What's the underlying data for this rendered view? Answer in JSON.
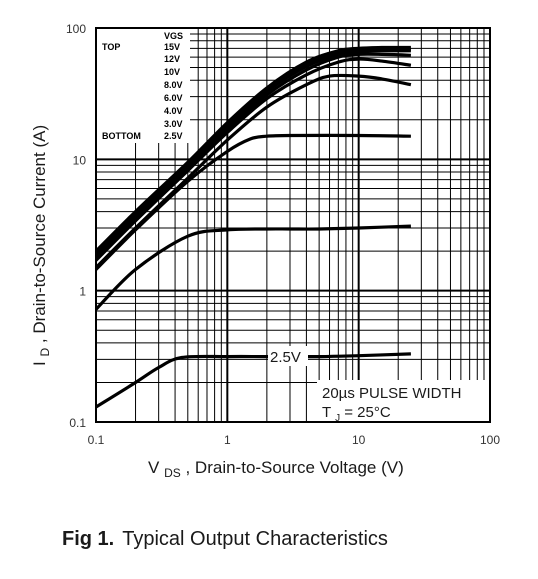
{
  "chart_data": {
    "type": "line",
    "xscale": "log",
    "yscale": "log",
    "xlim": [
      0.1,
      100
    ],
    "ylim": [
      0.1,
      100
    ],
    "grid": true,
    "x_ticks": [
      {
        "value": 0.1,
        "label": "0.1"
      },
      {
        "value": 1,
        "label": "1"
      },
      {
        "value": 10,
        "label": "10"
      },
      {
        "value": 100,
        "label": "100"
      }
    ],
    "y_ticks": [
      {
        "value": 0.1,
        "label": "0.1"
      },
      {
        "value": 1,
        "label": "1"
      },
      {
        "value": 10,
        "label": "10"
      },
      {
        "value": 100,
        "label": "100"
      }
    ],
    "xlabel": {
      "prefix": "V",
      "sub": "DS",
      "text": " , Drain-to-Source Voltage (V)"
    },
    "ylabel": {
      "prefix": "I",
      "sub": "D",
      "text": " , Drain-to-Source Current (A)"
    },
    "legend": {
      "header": "VGS",
      "top_label": "TOP",
      "bottom_label": "BOTTOM",
      "entries": [
        "15V",
        "12V",
        "10V",
        "8.0V",
        "6.0V",
        "4.0V",
        "3.0V",
        "2.5V"
      ]
    },
    "annotations": {
      "curve_label": "2.5V",
      "pulse_line1": "20µs PULSE WIDTH",
      "tj_prefix": "T",
      "tj_sub": "J",
      "tj_value": " = 25°C"
    },
    "series": [
      {
        "vgs": "15V",
        "x": [
          0.1,
          0.2,
          0.5,
          1,
          2,
          4,
          7,
          10,
          15,
          25
        ],
        "y": [
          2.0,
          4.0,
          9.5,
          19,
          35,
          55,
          67,
          70,
          71,
          71
        ]
      },
      {
        "vgs": "12V",
        "x": [
          0.1,
          0.2,
          0.5,
          1,
          2,
          4,
          7,
          10,
          15,
          25
        ],
        "y": [
          1.95,
          3.9,
          9.3,
          18.5,
          34,
          53,
          65,
          68,
          69,
          69
        ]
      },
      {
        "vgs": "10V",
        "x": [
          0.1,
          0.2,
          0.5,
          1,
          2,
          4,
          7,
          10,
          15,
          25
        ],
        "y": [
          1.9,
          3.8,
          9.0,
          18,
          33,
          51,
          63,
          66,
          67,
          67
        ]
      },
      {
        "vgs": "8.0V",
        "x": [
          0.1,
          0.2,
          0.5,
          1,
          2,
          4,
          7,
          10,
          15,
          25
        ],
        "y": [
          1.8,
          3.6,
          8.6,
          17,
          31,
          48,
          60,
          63,
          63,
          62
        ]
      },
      {
        "vgs": "6.0V",
        "x": [
          0.1,
          0.2,
          0.5,
          1,
          2,
          4,
          7,
          10,
          15,
          25
        ],
        "y": [
          1.7,
          3.4,
          8.2,
          16,
          29,
          44,
          55,
          58,
          56,
          52
        ]
      },
      {
        "vgs": "4.0V",
        "x": [
          0.1,
          0.2,
          0.5,
          1,
          2,
          4,
          6,
          10,
          15,
          25
        ],
        "y": [
          1.5,
          3.0,
          7.2,
          14,
          25,
          37,
          43,
          43,
          41,
          37
        ]
      },
      {
        "vgs": "3.0V",
        "x": [
          0.1,
          0.2,
          0.5,
          1,
          2,
          3,
          5,
          10,
          25
        ],
        "y": [
          0.72,
          1.45,
          2.6,
          2.9,
          2.95,
          2.95,
          2.95,
          3.0,
          3.1
        ]
      },
      {
        "vgs": "3.0V-mid",
        "x": [
          0.1,
          0.2,
          0.5,
          1,
          1.5,
          2,
          3,
          10,
          25
        ],
        "y": [
          1.45,
          2.9,
          6.8,
          11.5,
          14.3,
          15,
          15.2,
          15.2,
          15.0
        ]
      },
      {
        "vgs": "2.5V",
        "x": [
          0.1,
          0.2,
          0.3,
          0.45,
          1,
          2,
          5,
          10,
          25
        ],
        "y": [
          0.13,
          0.2,
          0.26,
          0.31,
          0.315,
          0.315,
          0.315,
          0.32,
          0.33
        ]
      }
    ]
  },
  "caption": {
    "fig_label": "Fig 1.",
    "text": "Typical Output Characteristics"
  }
}
